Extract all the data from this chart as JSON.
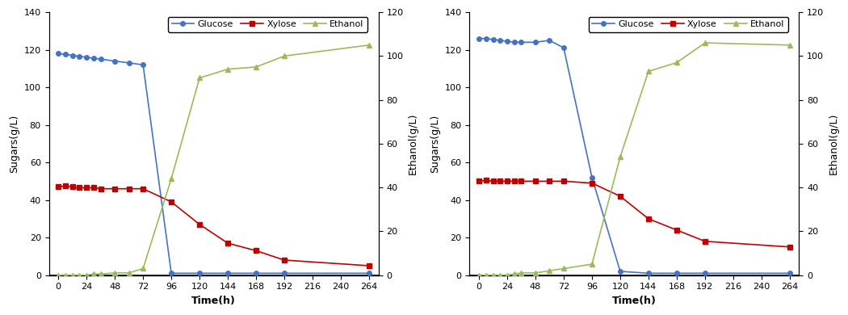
{
  "chart_A": {
    "time": [
      0,
      6,
      12,
      18,
      24,
      30,
      36,
      48,
      60,
      72,
      96,
      120,
      144,
      168,
      192,
      264
    ],
    "glucose": [
      118,
      117.5,
      117,
      116.5,
      116,
      115.5,
      115,
      114,
      113,
      112,
      1,
      1,
      1,
      1,
      1,
      1
    ],
    "xylose": [
      47,
      47.5,
      47,
      46.5,
      46.5,
      46.5,
      46,
      46,
      46,
      46,
      39,
      27,
      17,
      13,
      8,
      5
    ],
    "ethanol": [
      0,
      0,
      0,
      0,
      0,
      0.5,
      0.5,
      1,
      1,
      3,
      44,
      90,
      94,
      95,
      100,
      105
    ]
  },
  "chart_B": {
    "time": [
      0,
      6,
      12,
      18,
      24,
      30,
      36,
      48,
      60,
      72,
      96,
      120,
      144,
      168,
      192,
      264
    ],
    "glucose": [
      126,
      126,
      125.5,
      125,
      124.5,
      124,
      124,
      124,
      125,
      121,
      52,
      2,
      1,
      1,
      1,
      1
    ],
    "xylose": [
      50,
      50.5,
      50,
      50,
      50,
      50,
      50,
      50,
      50,
      50,
      49,
      42,
      30,
      24,
      18,
      15
    ],
    "ethanol": [
      0,
      0,
      0,
      0,
      0,
      0.5,
      1,
      1,
      2,
      3,
      5,
      54,
      93,
      97,
      106,
      105
    ]
  },
  "glucose_color": "#4472C4",
  "xylose_color": "#C00000",
  "ethanol_color": "#9BBB59",
  "ylim_sugars": [
    0,
    140
  ],
  "ylim_ethanol": [
    0,
    120
  ],
  "yticks_sugars": [
    0,
    20,
    40,
    60,
    80,
    100,
    120,
    140
  ],
  "yticks_ethanol": [
    0,
    20,
    40,
    60,
    80,
    100,
    120
  ],
  "xticks": [
    0,
    24,
    48,
    72,
    96,
    120,
    144,
    168,
    192,
    216,
    240,
    264
  ],
  "xlim": [
    -8,
    272
  ],
  "xlabel": "Time(h)",
  "ylabel_left": "Sugars(g/L)",
  "ylabel_right": "Ethanol(g/L)",
  "marker_glucose": "o",
  "marker_xylose": "s",
  "marker_ethanol": "^",
  "linewidth": 1.2,
  "markersize": 4,
  "font_size": 8,
  "label_fontsize": 9,
  "legend_fontsize": 8
}
